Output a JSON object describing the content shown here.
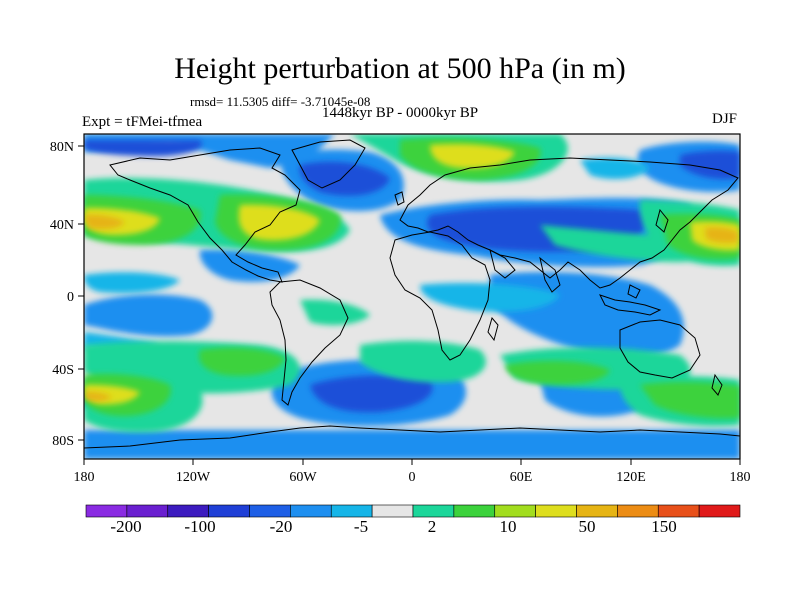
{
  "title": "Height perturbation at 500 hPa (in m)",
  "stats": {
    "rmsd": "rmsd= 11.5305",
    "diff": "diff= -3.71045e-08"
  },
  "period": "1448kyr BP - 0000kyr BP",
  "experiment": "Expt = tFMei-tfmea",
  "season": "DJF",
  "lat_labels": [
    "80N",
    "40N",
    "0",
    "40S",
    "80S"
  ],
  "lon_labels": [
    "180",
    "120W",
    "60W",
    "0",
    "60E",
    "120E",
    "180"
  ],
  "colorbar": {
    "colors": [
      "#8a2be2",
      "#6a1fd0",
      "#3c1bbf",
      "#1f3fd6",
      "#1e5fe6",
      "#1e8ff0",
      "#16b5e8",
      "#e6e6e6",
      "#1cd69a",
      "#3cd23c",
      "#a2dd1e",
      "#dede1e",
      "#e6b414",
      "#ec8c14",
      "#e8501a",
      "#e01a1a"
    ],
    "labels": [
      "-200",
      "-100",
      "-20",
      "-5",
      "2",
      "10",
      "50",
      "150"
    ]
  },
  "map_colors": {
    "background": "#e6e6e6",
    "strong_negative": "#1e50d8",
    "negative": "#1e8ff0",
    "weak_negative": "#16b5e8",
    "weak_positive": "#1cd69a",
    "positive": "#3cd23c",
    "strong_positive": "#a2dd1e",
    "high": "#dede1e",
    "very_high": "#e6b414"
  }
}
